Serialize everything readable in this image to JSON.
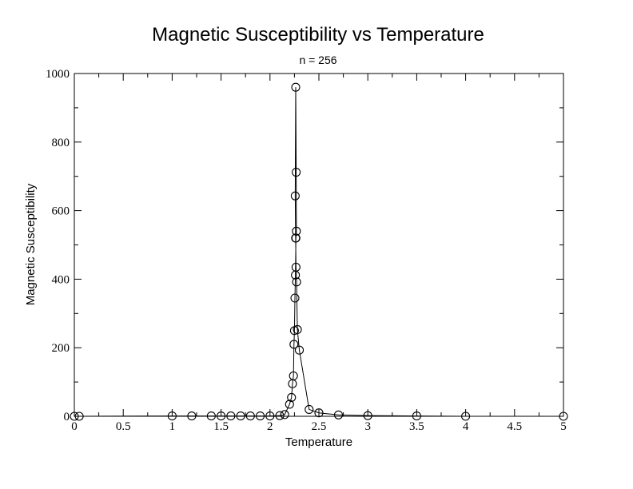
{
  "chart_data": {
    "type": "line",
    "title": "Magnetic Susceptibility vs Temperature",
    "subtitle": "n = 256",
    "xlabel": "Temperature",
    "ylabel": "Magnetic Susceptibility",
    "xlim": [
      0,
      5
    ],
    "ylim": [
      0,
      1000
    ],
    "xticks": [
      0,
      0.5,
      1,
      1.5,
      2,
      2.5,
      3,
      3.5,
      4,
      4.5,
      5
    ],
    "xtick_labels": [
      "0",
      "0.5",
      "1",
      "1.5",
      "2",
      "2.5",
      "3",
      "3.5",
      "4",
      "4.5",
      "5"
    ],
    "yticks": [
      0,
      200,
      400,
      600,
      800,
      1000
    ],
    "ytick_labels": [
      "0",
      "200",
      "400",
      "600",
      "800",
      "1000"
    ],
    "grid": false,
    "series": [
      {
        "marker": "circle",
        "x": [
          0,
          0.05,
          1.0,
          1.2,
          1.4,
          1.5,
          1.6,
          1.7,
          1.8,
          1.9,
          2.0,
          2.1,
          2.15,
          2.2,
          2.22,
          2.23,
          2.24,
          2.245,
          2.25,
          2.255,
          2.26,
          2.265,
          2.27,
          2.268,
          2.263,
          2.258,
          2.262,
          2.266,
          2.272,
          2.28,
          2.3,
          2.4,
          2.5,
          2.7,
          3.0,
          3.5,
          4.0,
          5.0
        ],
        "y": [
          0,
          0,
          1,
          1,
          1,
          1,
          1,
          1,
          1,
          1,
          1,
          2,
          5,
          35,
          55,
          95,
          118,
          210,
          250,
          345,
          412,
          520,
          540,
          712,
          960,
          643,
          520,
          435,
          392,
          253,
          193,
          20,
          10,
          4,
          2,
          1,
          0,
          0
        ]
      }
    ]
  }
}
